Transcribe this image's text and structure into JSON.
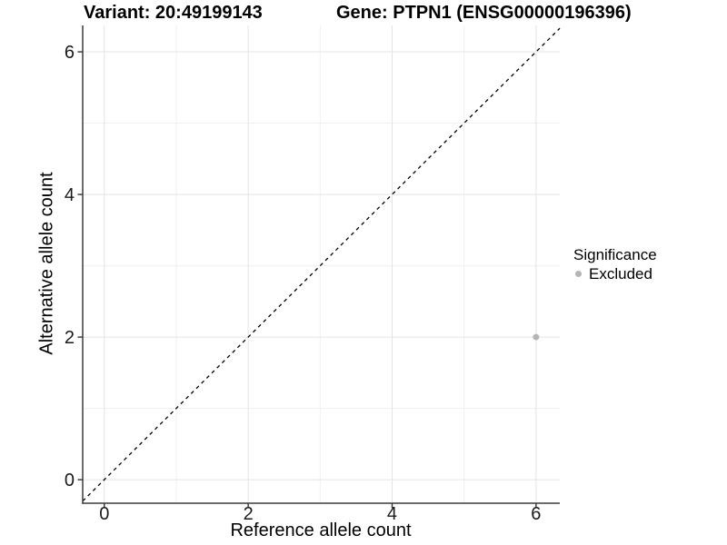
{
  "header": {
    "title_left": "Variant: 20:49199143",
    "title_right": "Gene: PTPN1 (ENSG00000196396)"
  },
  "chart_data": {
    "type": "scatter",
    "title_left": "Variant: 20:49199143",
    "title_right": "Gene: PTPN1 (ENSG00000196396)",
    "xlabel": "Reference allele count",
    "ylabel": "Alternative allele count",
    "xlim": [
      -0.3,
      6.33
    ],
    "ylim": [
      -0.33,
      6.37
    ],
    "x_ticks": [
      0,
      2,
      4,
      6
    ],
    "y_ticks": [
      0,
      2,
      4,
      6
    ],
    "minor_grid": [
      1,
      3,
      5
    ],
    "grid": true,
    "identity_line": {
      "style": "dashed",
      "equation": "y = x",
      "color": "#000000"
    },
    "points": [
      {
        "x": 6,
        "y": 2,
        "series": "Excluded",
        "color": "#b5b5b5",
        "radius": 3.5
      }
    ],
    "legend": {
      "title": "Significance",
      "position": "right",
      "items": [
        {
          "label": "Excluded",
          "color": "#b5b5b5",
          "marker": "circle"
        }
      ]
    },
    "colors": {
      "grid_major": "#e4e4e4",
      "grid_minor": "#f0f0f0",
      "axis_line": "#3c3c3c",
      "tick_mark": "#333333",
      "tick_label": "#1a1a1a"
    }
  }
}
